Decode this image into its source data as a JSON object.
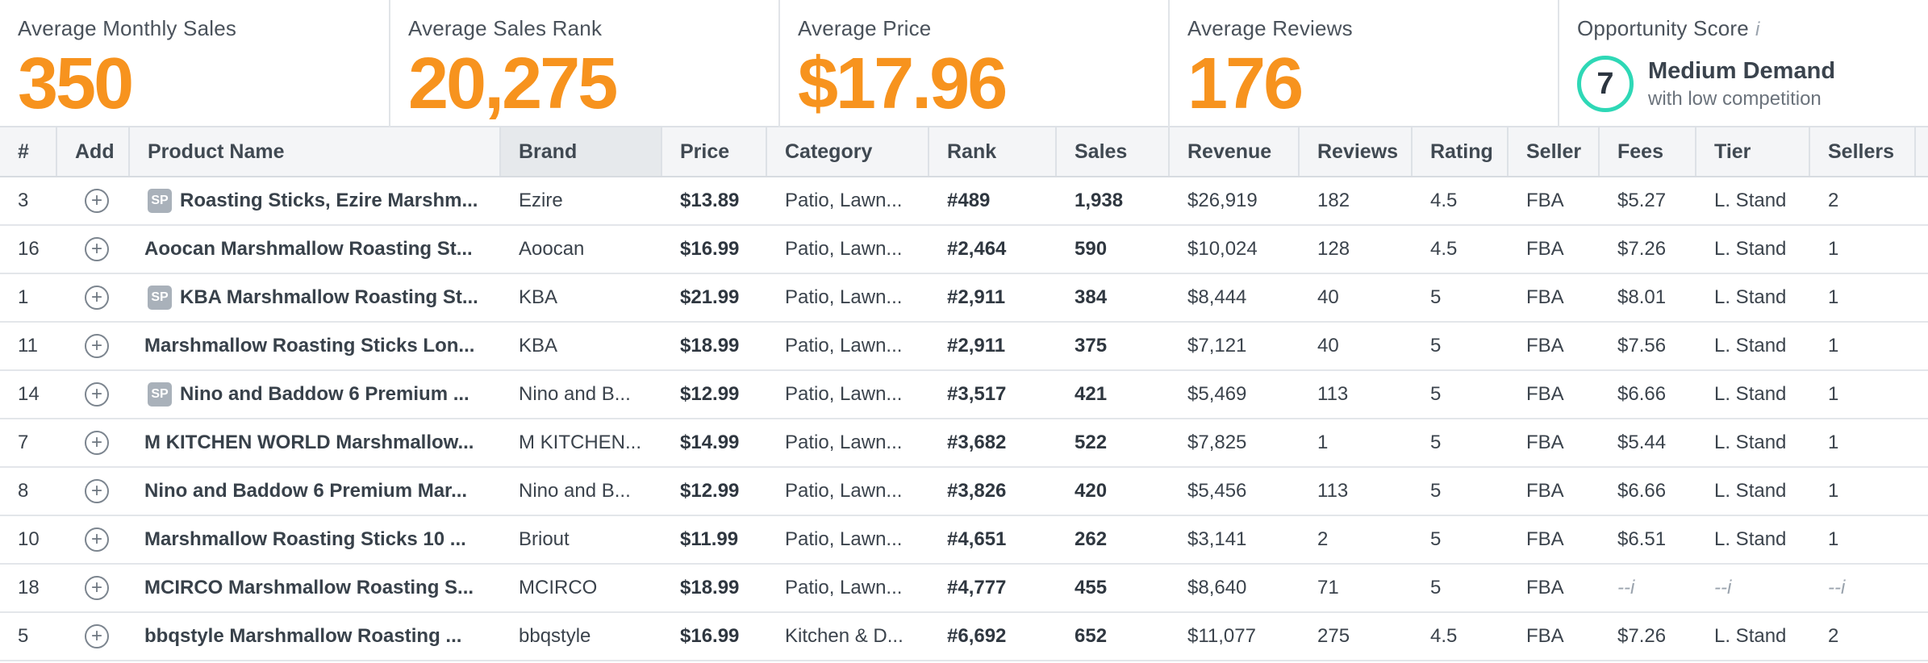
{
  "stats": [
    {
      "label": "Average Monthly Sales",
      "value": "350"
    },
    {
      "label": "Average Sales Rank",
      "value": "20,275"
    },
    {
      "label": "Average Price",
      "value": "$17.96"
    },
    {
      "label": "Average Reviews",
      "value": "176"
    }
  ],
  "opportunity": {
    "label": "Opportunity Score",
    "info": "i",
    "score": "7",
    "title": "Medium Demand",
    "subtitle": "with low competition"
  },
  "colors": {
    "accent": "#f7931e",
    "score_ring": "#2ed8b6"
  },
  "columns": [
    "#",
    "Add",
    "Product Name",
    "Brand",
    "Price",
    "Category",
    "Rank",
    "Sales",
    "Revenue",
    "Reviews",
    "Rating",
    "Seller",
    "Fees",
    "Tier",
    "Sellers"
  ],
  "sorted_column": "Brand",
  "rows": [
    {
      "num": "3",
      "sp": "SP",
      "name": "Roasting Sticks, Ezire Marshm...",
      "brand": "Ezire",
      "price": "$13.89",
      "category": "Patio, Lawn...",
      "rank": "#489",
      "sales": "1,938",
      "revenue": "$26,919",
      "reviews": "182",
      "rating": "4.5",
      "seller": "FBA",
      "fees": "$5.27",
      "tier": "L. Stand",
      "sellers": "2"
    },
    {
      "num": "16",
      "sp": "",
      "name": "Aoocan Marshmallow Roasting St...",
      "brand": "Aoocan",
      "price": "$16.99",
      "category": "Patio, Lawn...",
      "rank": "#2,464",
      "sales": "590",
      "revenue": "$10,024",
      "reviews": "128",
      "rating": "4.5",
      "seller": "FBA",
      "fees": "$7.26",
      "tier": "L. Stand",
      "sellers": "1"
    },
    {
      "num": "1",
      "sp": "SP",
      "name": "KBA Marshmallow Roasting St...",
      "brand": "KBA",
      "price": "$21.99",
      "category": "Patio, Lawn...",
      "rank": "#2,911",
      "sales": "384",
      "revenue": "$8,444",
      "reviews": "40",
      "rating": "5",
      "seller": "FBA",
      "fees": "$8.01",
      "tier": "L. Stand",
      "sellers": "1"
    },
    {
      "num": "11",
      "sp": "",
      "name": "Marshmallow Roasting Sticks Lon...",
      "brand": "KBA",
      "price": "$18.99",
      "category": "Patio, Lawn...",
      "rank": "#2,911",
      "sales": "375",
      "revenue": "$7,121",
      "reviews": "40",
      "rating": "5",
      "seller": "FBA",
      "fees": "$7.56",
      "tier": "L. Stand",
      "sellers": "1"
    },
    {
      "num": "14",
      "sp": "SP",
      "name": "Nino and Baddow 6 Premium ...",
      "brand": "Nino and B...",
      "price": "$12.99",
      "category": "Patio, Lawn...",
      "rank": "#3,517",
      "sales": "421",
      "revenue": "$5,469",
      "reviews": "113",
      "rating": "5",
      "seller": "FBA",
      "fees": "$6.66",
      "tier": "L. Stand",
      "sellers": "1"
    },
    {
      "num": "7",
      "sp": "",
      "name": "M KITCHEN WORLD Marshmallow...",
      "brand": "M KITCHEN...",
      "price": "$14.99",
      "category": "Patio, Lawn...",
      "rank": "#3,682",
      "sales": "522",
      "revenue": "$7,825",
      "reviews": "1",
      "rating": "5",
      "seller": "FBA",
      "fees": "$5.44",
      "tier": "L. Stand",
      "sellers": "1"
    },
    {
      "num": "8",
      "sp": "",
      "name": "Nino and Baddow 6 Premium Mar...",
      "brand": "Nino and B...",
      "price": "$12.99",
      "category": "Patio, Lawn...",
      "rank": "#3,826",
      "sales": "420",
      "revenue": "$5,456",
      "reviews": "113",
      "rating": "5",
      "seller": "FBA",
      "fees": "$6.66",
      "tier": "L. Stand",
      "sellers": "1"
    },
    {
      "num": "10",
      "sp": "",
      "name": "Marshmallow Roasting Sticks 10 ...",
      "brand": "Briout",
      "price": "$11.99",
      "category": "Patio, Lawn...",
      "rank": "#4,651",
      "sales": "262",
      "revenue": "$3,141",
      "reviews": "2",
      "rating": "5",
      "seller": "FBA",
      "fees": "$6.51",
      "tier": "L. Stand",
      "sellers": "1"
    },
    {
      "num": "18",
      "sp": "",
      "name": "MCIRCO Marshmallow Roasting S...",
      "brand": "MCIRCO",
      "price": "$18.99",
      "category": "Patio, Lawn...",
      "rank": "#4,777",
      "sales": "455",
      "revenue": "$8,640",
      "reviews": "71",
      "rating": "5",
      "seller": "FBA",
      "fees": "--i",
      "tier": "--i",
      "sellers": "--i"
    },
    {
      "num": "5",
      "sp": "",
      "name": "bbqstyle Marshmallow Roasting ...",
      "brand": "bbqstyle",
      "price": "$16.99",
      "category": "Kitchen & D...",
      "rank": "#6,692",
      "sales": "652",
      "revenue": "$11,077",
      "reviews": "275",
      "rating": "4.5",
      "seller": "FBA",
      "fees": "$7.26",
      "tier": "L. Stand",
      "sellers": "2"
    }
  ]
}
